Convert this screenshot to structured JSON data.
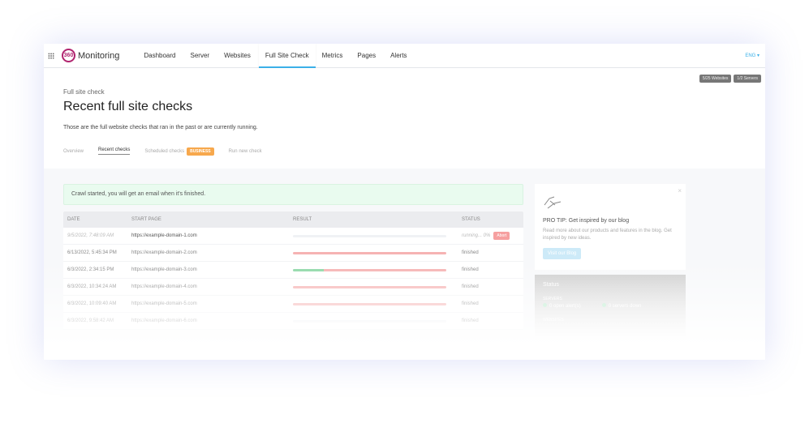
{
  "nav": {
    "brand": "Monitoring",
    "logo_text": "360",
    "items": [
      "Dashboard",
      "Server",
      "Websites",
      "Full Site Check",
      "Metrics",
      "Pages",
      "Alerts"
    ],
    "active": "Full Site Check",
    "lang": "ENG ▾"
  },
  "quota": {
    "websites": "5/25 Websites",
    "servers": "1/2 Servers"
  },
  "header": {
    "crumb": "Full site check",
    "title": "Recent full site checks",
    "desc": "Those are the full website checks that ran in the past or are currently running."
  },
  "tabs": {
    "overview": "Overview",
    "recent": "Recent checks",
    "scheduled": "Scheduled checks",
    "badge": "BUSINESS",
    "run": "Run new check"
  },
  "alert": "Crawl started, you will get an email when it's finished.",
  "table": {
    "headers": [
      "DATE",
      "START PAGE",
      "RESULT",
      "STATUS"
    ],
    "rows": [
      {
        "date": "9/5/2022, 7:48:09 AM",
        "page": "https://example-domain-1.com",
        "good": 0,
        "bad": 0,
        "status": "running... 0%",
        "action": "Abort"
      },
      {
        "date": "6/13/2022, 5:45:34 PM",
        "page": "https://example-domain-2.com",
        "good": 0,
        "bad": 100,
        "status": "finished"
      },
      {
        "date": "6/3/2022, 2:34:15 PM",
        "page": "https://example-domain-3.com",
        "good": 20,
        "bad": 80,
        "status": "finished"
      },
      {
        "date": "6/3/2022, 10:34:24 AM",
        "page": "https://example-domain-4.com",
        "good": 0,
        "bad": 100,
        "status": "finished"
      },
      {
        "date": "6/3/2022, 10:09:40 AM",
        "page": "https://example-domain-5.com",
        "good": 0,
        "bad": 100,
        "status": "finished"
      },
      {
        "date": "6/3/2022, 9:58:42 AM",
        "page": "https://example-domain-6.com",
        "good": 0,
        "bad": 0,
        "status": "finished"
      }
    ]
  },
  "tip": {
    "title": "PRO TIP: Get inspired by our blog",
    "text": "Read more about our products and features in the blog. Get inspired by new ideas.",
    "button": "Visit our Blog",
    "close": "×"
  },
  "status": {
    "title": "Status",
    "section": "SERVERS",
    "alerts": "0 open alert(s)",
    "down": "0 servers down",
    "section2": "WEBSITES"
  },
  "colors": {
    "accent": "#3bb0e8",
    "good": "#8fd8a8",
    "bad": "#f6b3b3",
    "badge": "#f7a84c"
  }
}
